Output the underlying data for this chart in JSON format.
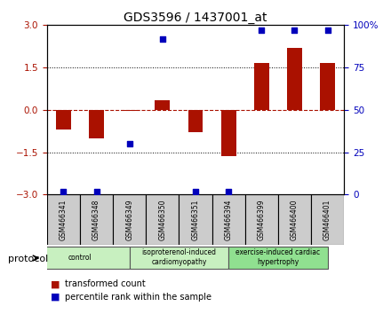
{
  "title": "GDS3596 / 1437001_at",
  "samples": [
    "GSM466341",
    "GSM466348",
    "GSM466349",
    "GSM466350",
    "GSM466351",
    "GSM466394",
    "GSM466399",
    "GSM466400",
    "GSM466401"
  ],
  "red_values": [
    -0.7,
    -1.0,
    -0.05,
    0.35,
    -0.8,
    -1.65,
    1.65,
    2.2,
    1.65
  ],
  "blue_values": [
    2,
    2,
    30,
    92,
    2,
    2,
    97,
    97,
    97
  ],
  "groups": [
    {
      "label": "control",
      "start": 0,
      "end": 3,
      "color": "#c8f0c0"
    },
    {
      "label": "isoproterenol-induced\ncardiomyopathy",
      "start": 3,
      "end": 6,
      "color": "#c8f0c0"
    },
    {
      "label": "exercise-induced cardiac\nhypertrophy",
      "start": 6,
      "end": 9,
      "color": "#90e090"
    }
  ],
  "ylim": [
    -3,
    3
  ],
  "y2lim": [
    0,
    100
  ],
  "yticks_red": [
    -3,
    -1.5,
    0,
    1.5,
    3
  ],
  "yticks_blue": [
    0,
    25,
    50,
    75,
    100
  ],
  "red_color": "#aa1100",
  "blue_color": "#0000bb",
  "bar_width": 0.45,
  "protocol_label": "protocol",
  "legend_red": "transformed count",
  "legend_blue": "percentile rank within the sample"
}
